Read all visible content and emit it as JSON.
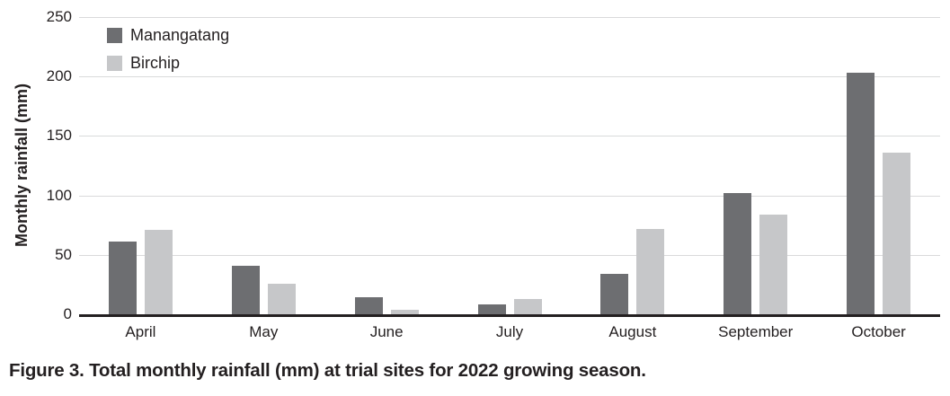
{
  "figure": {
    "caption": "Figure 3. Total monthly rainfall (mm) at trial sites for 2022 growing season."
  },
  "chart_data": {
    "type": "bar",
    "title": "",
    "xlabel": "",
    "ylabel": "Monthly rainfall (mm)",
    "ylim": [
      0,
      250
    ],
    "yticks": [
      0,
      50,
      100,
      150,
      200,
      250
    ],
    "grid": true,
    "legend_position": "top-left inside plot",
    "categories": [
      "April",
      "May",
      "June",
      "July",
      "August",
      "September",
      "October"
    ],
    "series": [
      {
        "name": "Manangatang",
        "color": "#6d6e71",
        "values": [
          61,
          41,
          14,
          8,
          34,
          102,
          203
        ]
      },
      {
        "name": "Birchip",
        "color": "#c6c7c9",
        "values": [
          71,
          26,
          4,
          13,
          72,
          84,
          136
        ]
      }
    ],
    "colors": {
      "gridline": "#d9dadb",
      "axis": "#231f20",
      "text": "#231f20"
    }
  }
}
